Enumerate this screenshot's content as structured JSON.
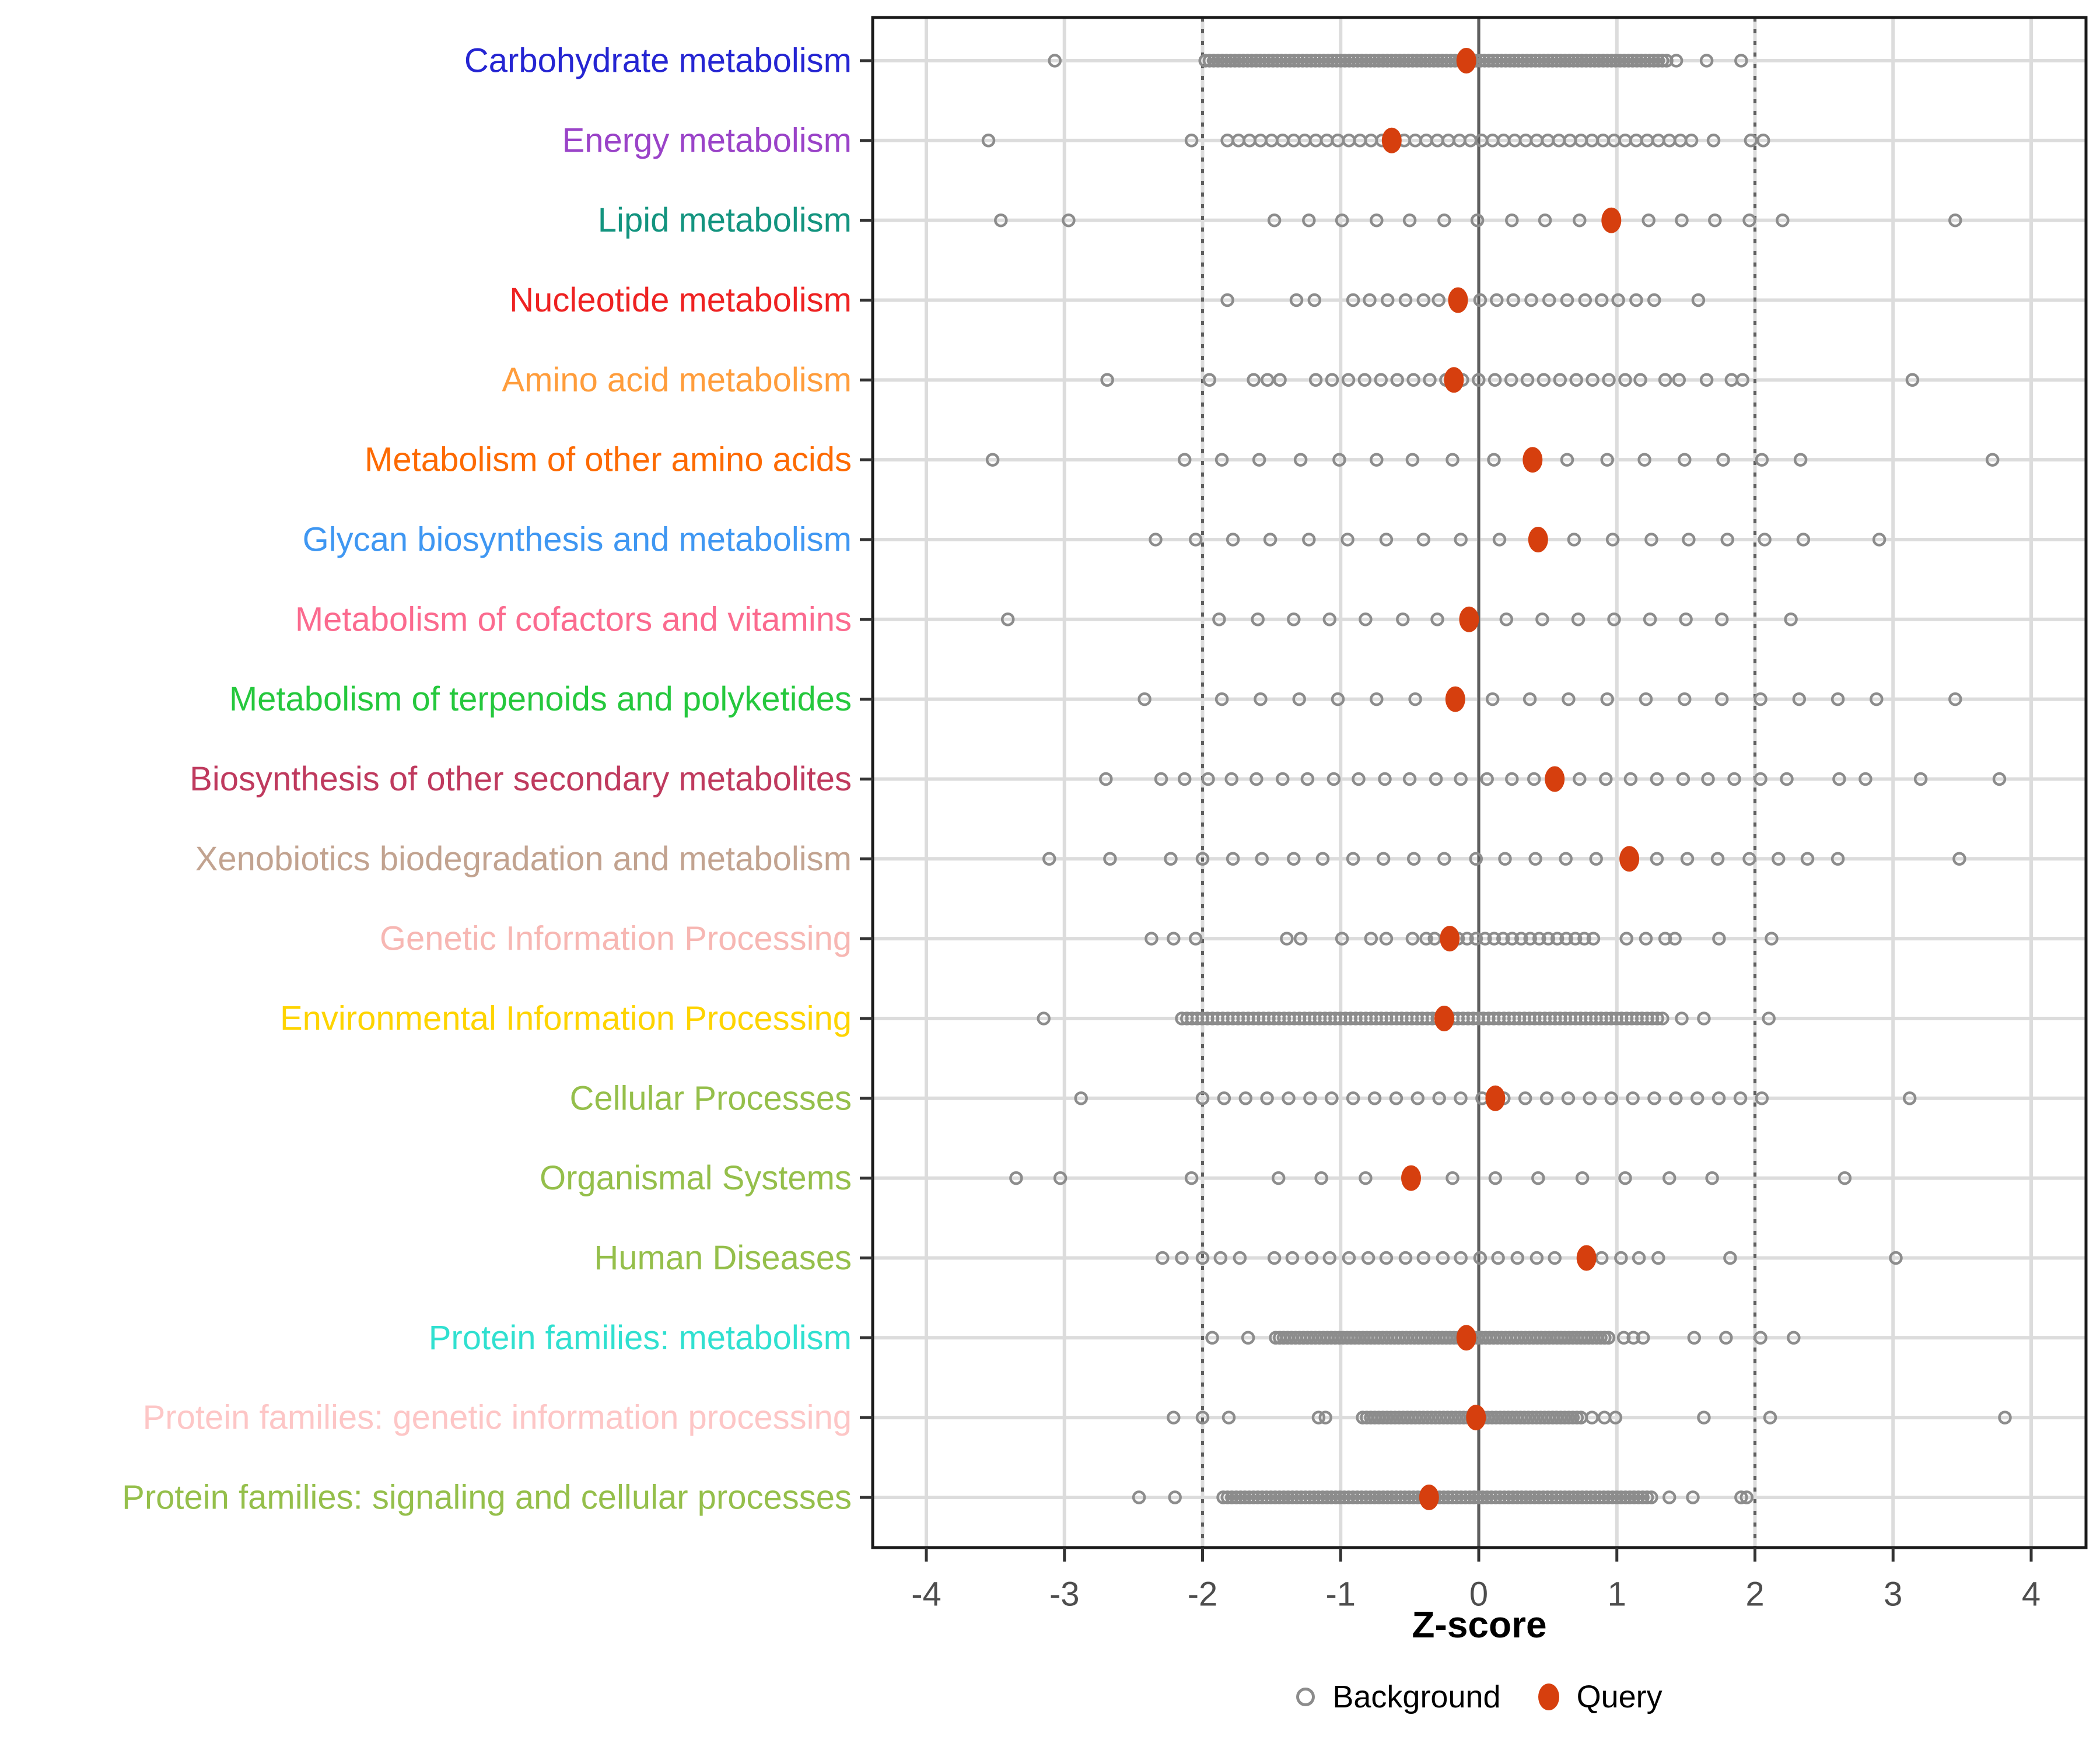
{
  "chart_data": {
    "type": "scatter",
    "title": "",
    "xlabel": "Z-score",
    "ylabel": "",
    "xlim": [
      -4.39,
      4.4
    ],
    "x_ticks": [
      -4,
      -3,
      -2,
      -1,
      0,
      1,
      2,
      3,
      4
    ],
    "x_tick_labels": [
      "-4",
      "-3",
      "-2",
      "-1",
      "0",
      "1",
      "2",
      "3",
      "4"
    ],
    "reference_lines": {
      "solid": [
        0
      ],
      "dotted": [
        -2,
        2
      ]
    },
    "grid": "on",
    "legend_position": "bottom",
    "legend": [
      {
        "label": "Background",
        "marker": "open-circle",
        "color": "#8c8c8c"
      },
      {
        "label": "Query",
        "marker": "filled-circle",
        "color": "#d63f0e"
      }
    ],
    "colors": {
      "background_point": "#8c8c8c",
      "query_point": "#d63f0e",
      "grid": "#dcdcdc",
      "reference_line": "#5f5f5f",
      "panel_border": "#1a1a1a",
      "tick_label": "#4d4d4d"
    },
    "categories": [
      {
        "label": "Carbohydrate metabolism",
        "color": "#2525d2",
        "query": -0.09,
        "background_bands": [
          {
            "from": -1.98,
            "to": 1.36,
            "count": 110
          }
        ],
        "background_points": [
          -3.07,
          1.43,
          1.65,
          1.9
        ]
      },
      {
        "label": "Energy metabolism",
        "color": "#9a43c8",
        "query": -0.63,
        "background_bands": [
          {
            "from": -1.82,
            "to": 1.54,
            "count": 43
          }
        ],
        "background_points": [
          -3.55,
          -2.08,
          1.7,
          1.97,
          2.06
        ]
      },
      {
        "label": "Lipid metabolism",
        "color": "#13947f",
        "query": 0.96,
        "background_bands": [],
        "background_points": [
          -3.46,
          -2.97,
          -1.48,
          -1.23,
          -0.99,
          -0.74,
          -0.5,
          -0.25,
          -0.01,
          0.24,
          0.48,
          0.73,
          1.23,
          1.47,
          1.71,
          1.96,
          2.2,
          3.45
        ]
      },
      {
        "label": "Nucleotide metabolism",
        "color": "#ee2222",
        "query": -0.15,
        "background_bands": [],
        "background_points": [
          -1.82,
          -1.32,
          -1.19,
          -0.91,
          -0.79,
          -0.66,
          -0.53,
          -0.4,
          -0.29,
          0.01,
          0.13,
          0.25,
          0.38,
          0.51,
          0.64,
          0.77,
          0.89,
          1.01,
          1.14,
          1.27,
          1.59
        ]
      },
      {
        "label": "Amino acid metabolism",
        "color": "#ff9d3c",
        "query": -0.18,
        "background_bands": [
          {
            "from": -1.18,
            "to": 1.06,
            "count": 20
          }
        ],
        "background_points": [
          -2.69,
          -1.95,
          -1.63,
          -1.53,
          -1.44,
          1.17,
          1.35,
          1.45,
          1.65,
          1.83,
          1.91,
          3.14
        ]
      },
      {
        "label": "Metabolism of other amino acids",
        "color": "#fd6a02",
        "query": 0.39,
        "background_bands": [],
        "background_points": [
          -3.52,
          -2.13,
          -1.86,
          -1.59,
          -1.29,
          -1.01,
          -0.74,
          -0.48,
          -0.19,
          0.11,
          0.64,
          0.93,
          1.2,
          1.49,
          1.77,
          2.05,
          2.33,
          3.72
        ]
      },
      {
        "label": "Glycan biosynthesis and metabolism",
        "color": "#3f97f2",
        "query": 0.43,
        "background_bands": [],
        "background_points": [
          -2.34,
          -2.05,
          -1.78,
          -1.51,
          -1.23,
          -0.95,
          -0.67,
          -0.4,
          -0.13,
          0.15,
          0.69,
          0.97,
          1.25,
          1.52,
          1.8,
          2.07,
          2.35,
          2.9
        ]
      },
      {
        "label": "Metabolism of cofactors and vitamins",
        "color": "#fb6b8f",
        "query": -0.07,
        "background_bands": [],
        "background_points": [
          -3.41,
          -1.88,
          -1.6,
          -1.34,
          -1.08,
          -0.82,
          -0.55,
          -0.3,
          0.2,
          0.46,
          0.72,
          0.98,
          1.24,
          1.5,
          1.76,
          2.26
        ]
      },
      {
        "label": "Metabolism of terpenoids and polyketides",
        "color": "#25c83d",
        "query": -0.17,
        "background_bands": [],
        "background_points": [
          -2.42,
          -1.86,
          -1.58,
          -1.3,
          -1.02,
          -0.74,
          -0.46,
          0.1,
          0.37,
          0.65,
          0.93,
          1.21,
          1.49,
          1.76,
          2.04,
          2.32,
          2.6,
          2.88,
          3.45
        ]
      },
      {
        "label": "Biosynthesis of other secondary metabolites",
        "color": "#bf3a5e",
        "query": 0.55,
        "background_bands": [],
        "background_points": [
          -2.7,
          -2.3,
          -2.13,
          -1.96,
          -1.79,
          -1.61,
          -1.42,
          -1.24,
          -1.05,
          -0.87,
          -0.68,
          -0.5,
          -0.31,
          -0.13,
          0.06,
          0.24,
          0.4,
          0.73,
          0.92,
          1.1,
          1.29,
          1.48,
          1.66,
          1.85,
          2.04,
          2.23,
          2.61,
          2.8,
          3.2,
          3.77
        ]
      },
      {
        "label": "Xenobiotics biodegradation and metabolism",
        "color": "#c2a390",
        "query": 1.09,
        "background_bands": [],
        "background_points": [
          -3.11,
          -2.67,
          -2.23,
          -2.0,
          -1.78,
          -1.57,
          -1.34,
          -1.13,
          -0.91,
          -0.69,
          -0.47,
          -0.25,
          -0.02,
          0.19,
          0.41,
          0.63,
          0.85,
          1.29,
          1.51,
          1.73,
          1.96,
          2.17,
          2.38,
          2.6,
          3.48
        ]
      },
      {
        "label": "Genetic Information Processing",
        "color": "#f7b7b3",
        "query": -0.21,
        "background_bands": [
          {
            "from": -0.15,
            "to": 0.83,
            "count": 16
          }
        ],
        "background_points": [
          -2.37,
          -2.21,
          -2.05,
          -1.39,
          -1.29,
          -0.99,
          -0.78,
          -0.67,
          -0.48,
          -0.38,
          -0.32,
          1.07,
          1.21,
          1.35,
          1.42,
          1.74,
          2.12
        ]
      },
      {
        "label": "Environmental Information Processing",
        "color": "#fed400",
        "query": -0.25,
        "background_bands": [
          {
            "from": -2.15,
            "to": 1.33,
            "count": 95
          }
        ],
        "background_points": [
          -3.15,
          1.47,
          1.63,
          2.1
        ]
      },
      {
        "label": "Cellular Processes",
        "color": "#95bf4b",
        "query": 0.12,
        "background_bands": [
          {
            "from": -2.0,
            "to": 2.05,
            "count": 27
          }
        ],
        "background_points": [
          -2.88,
          3.12
        ]
      },
      {
        "label": "Organismal Systems",
        "color": "#95bf4b",
        "query": -0.49,
        "background_bands": [],
        "background_points": [
          -3.35,
          -3.03,
          -2.08,
          -1.45,
          -1.14,
          -0.82,
          -0.19,
          0.12,
          0.43,
          0.75,
          1.06,
          1.38,
          1.69,
          2.65
        ]
      },
      {
        "label": "Human Diseases",
        "color": "#95bf4b",
        "query": 0.78,
        "background_bands": [],
        "background_points": [
          -2.29,
          -2.15,
          -2.0,
          -1.87,
          -1.73,
          -1.48,
          -1.35,
          -1.21,
          -1.08,
          -0.94,
          -0.8,
          -0.67,
          -0.53,
          -0.4,
          -0.26,
          -0.13,
          0.01,
          0.14,
          0.28,
          0.42,
          0.55,
          0.89,
          1.03,
          1.16,
          1.3,
          1.82,
          3.02
        ]
      },
      {
        "label": "Protein families: metabolism",
        "color": "#30e0d0",
        "query": -0.09,
        "background_bands": [
          {
            "from": -1.47,
            "to": 0.94,
            "count": 85
          }
        ],
        "background_points": [
          -1.93,
          -1.67,
          1.05,
          1.12,
          1.19,
          1.56,
          1.79,
          2.04,
          2.28
        ]
      },
      {
        "label": "Protein families: genetic information processing",
        "color": "#fdc6c6",
        "query": -0.02,
        "background_bands": [
          {
            "from": -0.84,
            "to": 0.74,
            "count": 55
          }
        ],
        "background_points": [
          -2.21,
          -2.0,
          -1.81,
          -1.16,
          -1.11,
          0.82,
          0.91,
          0.99,
          1.63,
          2.11,
          3.81
        ]
      },
      {
        "label": "Protein families: signaling and cellular processes",
        "color": "#95bf4b",
        "query": -0.36,
        "background_bands": [
          {
            "from": -1.85,
            "to": 1.25,
            "count": 100
          }
        ],
        "background_points": [
          -2.46,
          -2.2,
          1.38,
          1.55,
          1.9,
          1.94
        ]
      }
    ]
  }
}
